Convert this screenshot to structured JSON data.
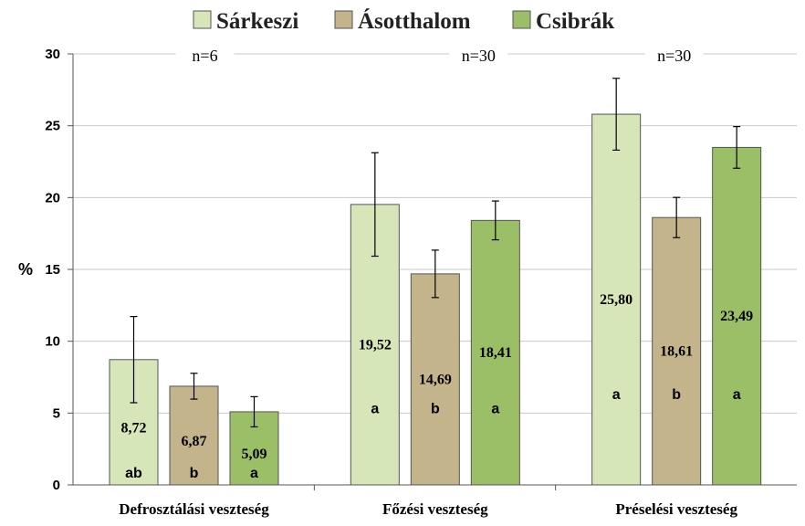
{
  "chart_data": {
    "type": "bar",
    "categories": [
      "Defrosztálási veszteség",
      "Főzési veszteség",
      "Préselési veszteség"
    ],
    "ylabel": "%",
    "ylim": [
      0,
      30
    ],
    "yticks": [
      0,
      5,
      10,
      15,
      20,
      25,
      30
    ],
    "grid": true,
    "legend": "top",
    "sample_sizes": [
      "n=6",
      "n=30",
      "n=30"
    ],
    "series": [
      {
        "name": "Sárkeszi",
        "color": "#d6e6b9",
        "values": [
          8.72,
          19.52,
          25.8
        ],
        "value_labels": [
          "8,72",
          "19,52",
          "25,80"
        ],
        "errors": [
          3.0,
          3.6,
          2.5
        ],
        "significance": [
          "ab",
          "a",
          "a"
        ]
      },
      {
        "name": "Ásotthalom",
        "color": "#c4b48b",
        "values": [
          6.87,
          14.69,
          18.61
        ],
        "value_labels": [
          "6,87",
          "14,69",
          "18,61"
        ],
        "errors": [
          0.9,
          1.65,
          1.4
        ],
        "significance": [
          "b",
          "b",
          "b"
        ]
      },
      {
        "name": "Csibrák",
        "color": "#9bbf66",
        "values": [
          5.09,
          18.41,
          23.49
        ],
        "value_labels": [
          "5,09",
          "18,41",
          "23,49"
        ],
        "errors": [
          1.05,
          1.35,
          1.45
        ],
        "significance": [
          "a",
          "a",
          "a"
        ]
      }
    ]
  }
}
